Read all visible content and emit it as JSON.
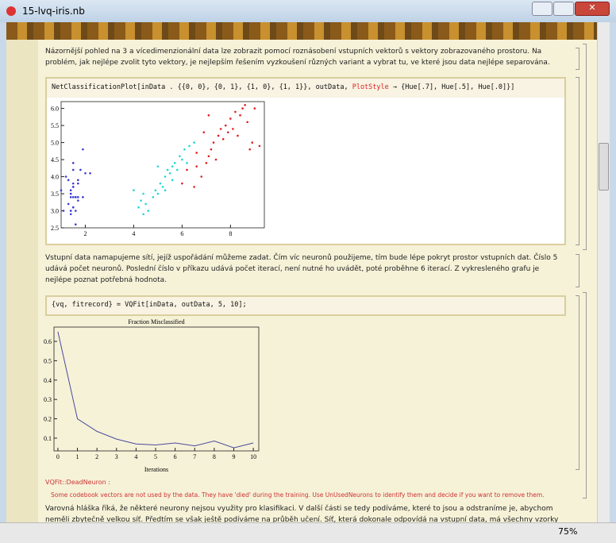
{
  "window": {
    "title": "15-lvq-iris.nb",
    "zoom": "75%"
  },
  "text1": "Názornější pohled na 3 a vícedimenzionální data lze zobrazit pomocí roznásobení vstupních vektorů s vektory zobrazovaného prostoru. Na problém, jak nejlépe zvolit tyto vektory, je nejlepším řešením vyzkoušení různých variant a vybrat tu, ve které jsou data nejlépe separována.",
  "input1": {
    "code": "NetClassificationPlot[inData . {{0, 0}, {0, 1}, {1, 0}, {1, 1}}, outData, ",
    "option": "PlotStyle",
    "rest": " → {Hue[.7], Hue[.5], Hue[.0]}]"
  },
  "scatter": {
    "type": "scatter",
    "xlim": [
      1.0,
      9.4
    ],
    "ylim": [
      2.5,
      6.2
    ],
    "xticks": [
      2,
      4,
      6,
      8
    ],
    "yticks": [
      2.5,
      {
        "value": 3,
        "label": "3.0"
      },
      3.5,
      {
        "value": 4,
        "label": "4.0"
      },
      4.5,
      {
        "value": 5,
        "label": "5.0"
      },
      5.5,
      {
        "value": 6,
        "label": "6.0"
      }
    ],
    "series": [
      {
        "color": "#3b3bd6",
        "x": [
          1.4,
          1.4,
          1.3,
          1.5,
          1.4,
          1.7,
          1.4,
          1.5,
          1.4,
          1.5,
          1.5,
          1.6,
          1.4,
          1.1,
          1.2,
          1.5,
          1.3,
          1.4,
          1.7,
          1.5,
          1.7,
          1.5,
          1.0,
          1.7,
          1.9,
          1.6,
          1.6,
          1.5,
          1.9,
          1.6,
          2.0,
          1.8,
          2.2
        ],
        "y": [
          3.5,
          3.0,
          3.2,
          3.1,
          3.6,
          3.9,
          3.4,
          3.4,
          2.9,
          3.1,
          3.7,
          3.4,
          3.0,
          3.0,
          4.0,
          4.4,
          3.9,
          3.5,
          3.8,
          3.8,
          3.4,
          3.7,
          3.6,
          3.3,
          3.4,
          3.0,
          3.4,
          4.2,
          4.8,
          2.6,
          4.1,
          4.2,
          4.1
        ]
      },
      {
        "color": "#22d6d6",
        "x": [
          4.0,
          4.3,
          4.4,
          4.5,
          4.6,
          4.8,
          4.9,
          5.0,
          5.1,
          5.2,
          5.3,
          5.4,
          5.5,
          5.6,
          5.7,
          5.8,
          5.9,
          6.0,
          6.1,
          6.2,
          6.3,
          5.0,
          5.6,
          4.4,
          6.5,
          4.2,
          5.3
        ],
        "y": [
          3.6,
          3.3,
          3.5,
          3.2,
          3.0,
          3.4,
          3.6,
          3.5,
          3.8,
          3.7,
          4.0,
          4.2,
          4.1,
          4.3,
          4.4,
          4.2,
          4.6,
          4.5,
          4.8,
          4.4,
          4.9,
          4.3,
          3.9,
          2.9,
          5.0,
          3.1,
          3.6
        ]
      },
      {
        "color": "#e02020",
        "x": [
          6.0,
          6.5,
          6.6,
          6.8,
          7.0,
          7.1,
          7.2,
          7.3,
          7.4,
          7.5,
          7.6,
          7.7,
          7.8,
          7.9,
          8.0,
          8.1,
          8.2,
          8.3,
          8.4,
          8.5,
          8.7,
          8.9,
          9.0,
          8.8,
          6.9,
          7.1,
          6.6,
          6.2,
          8.6,
          9.2
        ],
        "y": [
          3.8,
          3.7,
          4.3,
          4.0,
          4.4,
          4.6,
          4.8,
          5.0,
          4.5,
          5.2,
          5.4,
          5.1,
          5.5,
          5.3,
          5.7,
          5.4,
          5.9,
          5.2,
          5.8,
          6.0,
          5.6,
          5.0,
          6.0,
          4.8,
          5.3,
          5.8,
          4.7,
          4.2,
          6.1,
          4.9
        ]
      }
    ]
  },
  "text2": "Vstupní data namapujeme sítí, jejíž uspořádání můžeme zadat. Čím víc neuronů použijeme, tím bude lépe pokryt prostor vstupních dat. Číslo 5 udává počet neuronů. Poslední číslo v příkazu udává počet iterací, není nutné ho uvádět, poté proběhne 6 iterací. Z vykresleného grafu je nejlépe poznat potřebná hodnota.",
  "input2": {
    "code": "{vq, fitrecord} = VQFit[inData, outData, 5, 10];"
  },
  "linechart": {
    "type": "line",
    "title": "Fraction Misclassified",
    "x_label": "Iterations",
    "color": "#4a4a9a",
    "x": [
      0,
      1,
      2,
      3,
      4,
      5,
      6,
      7,
      8,
      9,
      10
    ],
    "values": [
      0.65,
      0.2,
      0.135,
      0.095,
      0.07,
      0.065,
      0.075,
      0.06,
      0.085,
      0.05,
      0.075
    ],
    "xlim": [
      -0.2,
      10.28
    ],
    "ylim": [
      0.034,
      0.674
    ],
    "xticks": [
      0,
      1,
      2,
      3,
      4,
      5,
      6,
      7,
      8,
      9,
      10
    ],
    "yticks": [
      0.1,
      0.2,
      0.3,
      0.4,
      0.5,
      0.6
    ]
  },
  "message": {
    "name": "VQFit::DeadNeuron :",
    "text": "Some codebook vectors are not used by the data. They have 'died' during the training. Use UnUsedNeurons to identify them and decide if you want to remove them."
  },
  "text3": "Varovná hláška říká, že některé neurony nejsou využity pro klasifikaci. V další části se tedy podíváme, které to jsou a odstraníme je, abychom neměli zbytečně velkou síť. Předtím se však ještě podíváme na průběh učení. Síť, která dokonale odpovídá na vstupní data, má všechny vzorky na úhlopříčce."
}
